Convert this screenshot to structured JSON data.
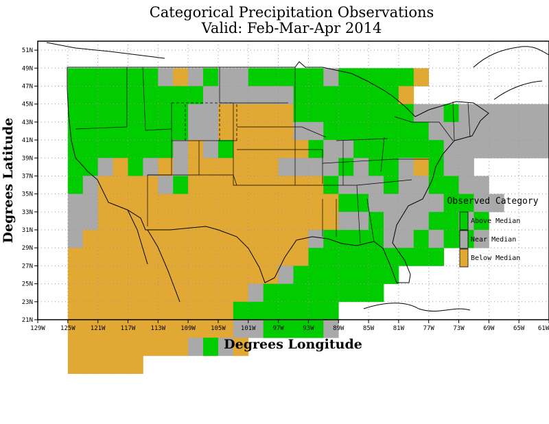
{
  "title": {
    "line1": "Categorical Precipitation Observations",
    "line2": "Valid: Feb-Mar-Apr 2014"
  },
  "axes": {
    "x_title": "Degrees Longitude",
    "y_title": "Degrees Latitude",
    "x_ticks": [
      "129W",
      "125W",
      "121W",
      "117W",
      "113W",
      "109W",
      "105W",
      "101W",
      "97W",
      "93W",
      "89W",
      "85W",
      "81W",
      "77W",
      "73W",
      "69W",
      "65W",
      "61W"
    ],
    "y_ticks": [
      "21N",
      "23N",
      "25N",
      "27N",
      "29N",
      "31N",
      "33N",
      "35N",
      "37N",
      "39N",
      "41N",
      "43N",
      "45N",
      "47N",
      "49N",
      "51N"
    ],
    "lon_range": [
      -129,
      -61
    ],
    "lat_range": [
      21,
      52
    ]
  },
  "legend": {
    "title": "Observed Category",
    "items": [
      {
        "label": "Above Median",
        "color": "#00cc00"
      },
      {
        "label": "Near Median",
        "color": "#a9a9a9"
      },
      {
        "label": "Below Median",
        "color": "#e2a834"
      }
    ]
  },
  "chart_data": {
    "type": "heatmap",
    "cell_size_degrees": 2,
    "categories": [
      "Above Median",
      "Near Median",
      "Below Median"
    ],
    "colors": {
      "A": "#00cc00",
      "N": "#a9a9a9",
      "B": "#e2a834"
    },
    "origin": {
      "lon": -125,
      "lat": 49
    },
    "rows": [
      "AAAAAANBNANNAAAAANAAAAAB",
      "AAAAAAAAANNNNNNAAAAAAAB",
      "AAAAAAAANNBBBBBAAAAAAAANNANNNNNNAA",
      "AAAAAAAANNBBBBBNNAAAAAAANNNNNNNNNNAA",
      "AAAAAAANBNABBBBBANNAAAAAANNNNNNNNNN",
      "AANBANBNBBBBBBNNNNANAANBANN",
      "ANBBBBNABBBBBBBBBANNNANNAANN",
      "NNBBBBBBBBBBBBBBBBAANNNNNAANN",
      "NNBBBBBBBBBBBBBBBBNNANNNAANA",
      "NBBBBBBBBBBBBBBBNAAAANNANAAN",
      "BBBBBBBBBBBBBBBBAAAAAAAAA",
      "BBBBBBBBBBBBBBNAAAAAAA",
      "BBBBBBBBBBBBNAAAAAAAA",
      "BBBBBBBBBBBAAAAAAA",
      "BBBBBBBBBBBNNAAAAN",
      "BBBBBBBBNANB",
      "BBBBB"
    ]
  }
}
